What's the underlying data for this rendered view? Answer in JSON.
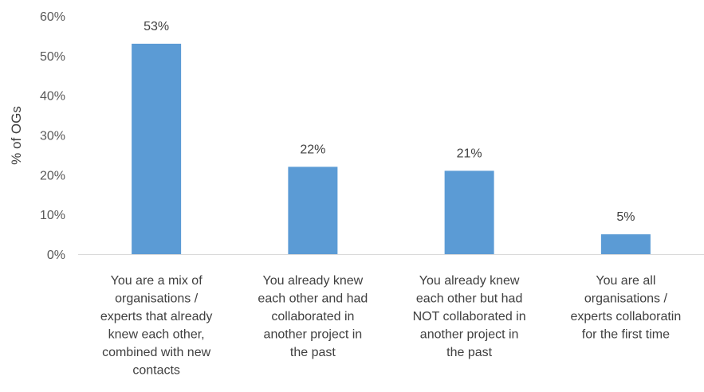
{
  "chart_data": {
    "type": "bar",
    "ylabel": "% of OGs",
    "ylim": [
      0,
      60
    ],
    "yticks": [
      0,
      10,
      20,
      30,
      40,
      50,
      60
    ],
    "ytick_labels": [
      "0%",
      "10%",
      "20%",
      "30%",
      "40%",
      "50%",
      "60%"
    ],
    "grid": false,
    "bar_color": "#5B9BD5",
    "categories": [
      "You are a mix of organisations / experts that already knew each other, combined with new contacts",
      "You already knew each other and had collaborated in another project in the past",
      "You already knew each other but had NOT collaborated in another project in the past",
      "You are all organisations / experts collaborating for the first time"
    ],
    "category_lines": [
      [
        "You are a mix of",
        "organisations /",
        "experts that already",
        "knew each other,",
        "combined with new",
        "contacts"
      ],
      [
        "You already knew",
        "each other and had",
        "collaborated in",
        "another project in",
        "the past"
      ],
      [
        "You already knew",
        "each other but had",
        "NOT collaborated in",
        "another project in",
        "the past"
      ],
      [
        "You are all",
        "organisations /",
        "experts collaboratin",
        "for the first time"
      ]
    ],
    "values": [
      53,
      22,
      21,
      5
    ],
    "data_labels": [
      "53%",
      "22%",
      "21%",
      "5%"
    ]
  }
}
